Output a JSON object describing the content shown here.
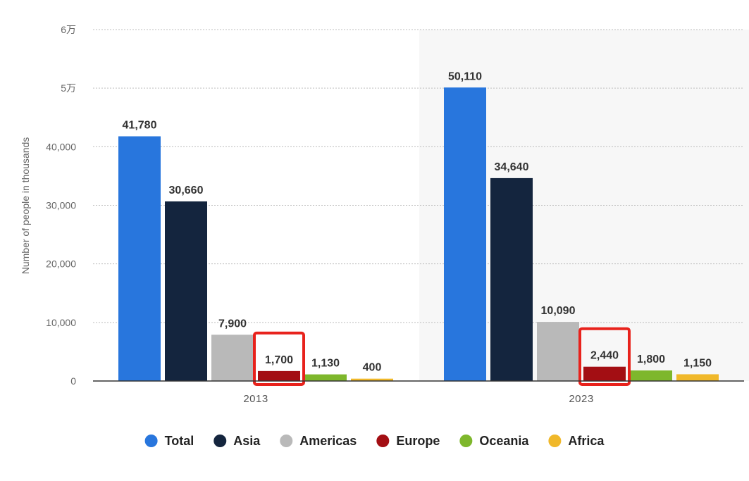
{
  "chart_data": {
    "type": "bar",
    "categories": [
      "2013",
      "2023"
    ],
    "series": [
      {
        "name": "Total",
        "color": "#2876dd",
        "values": [
          41780,
          50110
        ],
        "labels": [
          "41,780",
          "50,110"
        ]
      },
      {
        "name": "Asia",
        "color": "#14253e",
        "values": [
          30660,
          34640
        ],
        "labels": [
          "30,660",
          "34,640"
        ]
      },
      {
        "name": "Americas",
        "color": "#b9b9b9",
        "values": [
          7900,
          10090
        ],
        "labels": [
          "7,900",
          "10,090"
        ]
      },
      {
        "name": "Europe",
        "color": "#a30e13",
        "values": [
          1700,
          2440
        ],
        "labels": [
          "1,700",
          "2,440"
        ]
      },
      {
        "name": "Oceania",
        "color": "#7eb72c",
        "values": [
          1130,
          1800
        ],
        "labels": [
          "1,130",
          "1,800"
        ]
      },
      {
        "name": "Africa",
        "color": "#f0b82a",
        "values": [
          400,
          1150
        ],
        "labels": [
          "400",
          "1,150"
        ]
      }
    ],
    "ylabel": "Number of people in thousands",
    "ylim": [
      0,
      60000
    ],
    "yticks": [
      0,
      10000,
      20000,
      30000,
      40000,
      50000,
      60000
    ],
    "ytick_labels": [
      "0",
      "10,000",
      "20,000",
      "30,000",
      "40,000",
      "5万",
      "6万"
    ],
    "grid": true,
    "legend_position": "bottom-center",
    "highlighted": [
      {
        "series": "Europe",
        "category": "2013"
      },
      {
        "series": "Europe",
        "category": "2023"
      }
    ],
    "highlight_color": "#e8221c",
    "shaded_category": "2023",
    "shade_color": "#f7f7f7"
  }
}
